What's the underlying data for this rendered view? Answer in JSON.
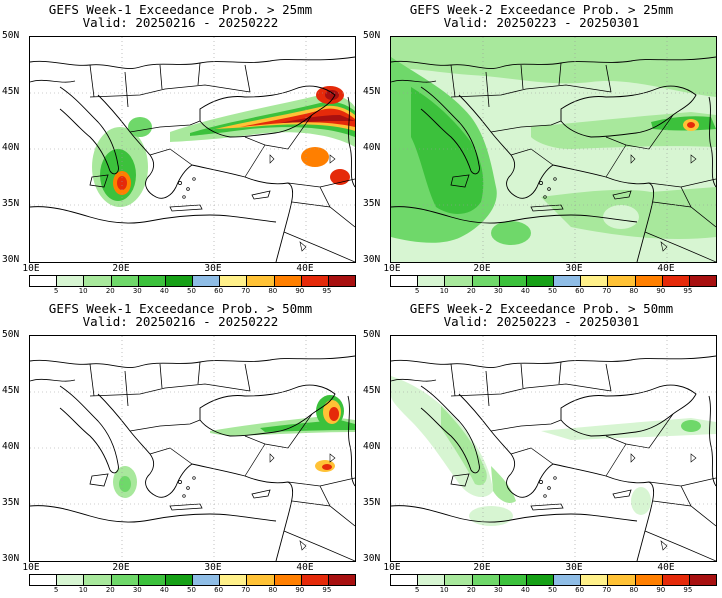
{
  "panels": [
    {
      "title": "GEFS Week-1 Exceedance Prob. > 25mm",
      "valid": "Valid: 20250216 - 20250222"
    },
    {
      "title": "GEFS Week-2 Exceedance Prob. > 25mm",
      "valid": "Valid: 20250223 - 20250301"
    },
    {
      "title": "GEFS Week-1 Exceedance Prob. > 50mm",
      "valid": "Valid: 20250216 - 20250222"
    },
    {
      "title": "GEFS Week-2 Exceedance Prob. > 50mm",
      "valid": "Valid: 20250223 - 20250301"
    }
  ],
  "lat_labels": [
    "50N",
    "45N",
    "40N",
    "35N",
    "30N"
  ],
  "lon_labels": [
    "10E",
    "20E",
    "30E",
    "40E"
  ],
  "colorbar": {
    "levels": [
      "5",
      "10",
      "20",
      "30",
      "40",
      "50",
      "60",
      "70",
      "80",
      "90",
      "95"
    ],
    "colors": [
      "#ffffff",
      "#d7f5d2",
      "#a8e89c",
      "#6fd86a",
      "#3cc13c",
      "#16a016",
      "#8fbde6",
      "#fff08a",
      "#ffc236",
      "#ff7f00",
      "#e52a0a",
      "#a81010"
    ]
  }
}
